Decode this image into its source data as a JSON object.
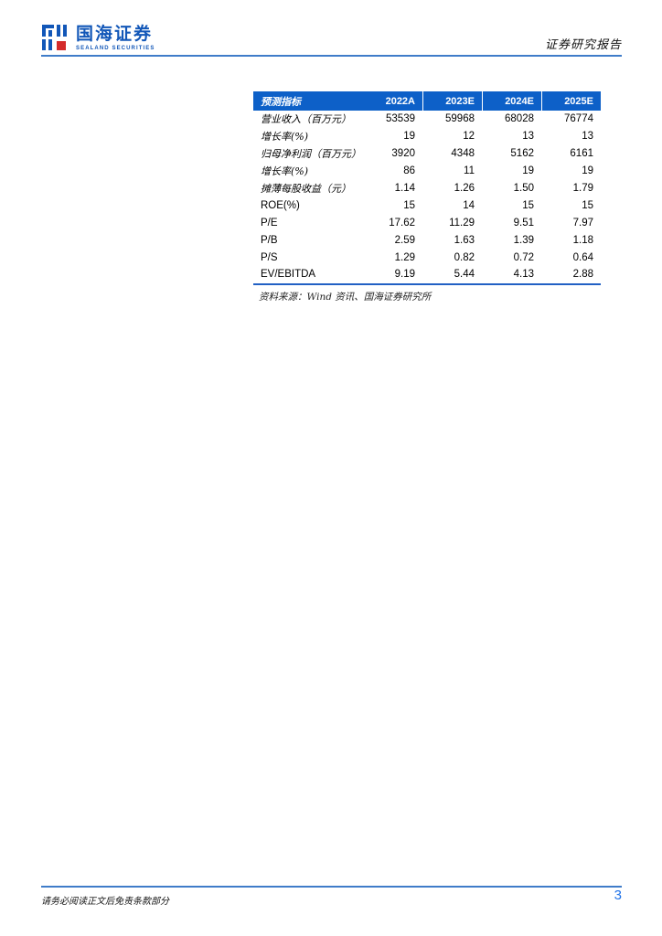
{
  "brand": {
    "logo_text": "国海证券",
    "logo_subtext": "SEALAND SECURITIES",
    "report_type": "证券研究报告"
  },
  "table": {
    "header": [
      "预测指标",
      "2022A",
      "2023E",
      "2024E",
      "2025E"
    ],
    "rows": [
      {
        "label": "营业收入（百万元）",
        "values": [
          "53539",
          "59968",
          "68028",
          "76774"
        ]
      },
      {
        "label": "增长率(%)",
        "values": [
          "19",
          "12",
          "13",
          "13"
        ]
      },
      {
        "label": "归母净利润（百万元）",
        "values": [
          "3920",
          "4348",
          "5162",
          "6161"
        ]
      },
      {
        "label": "增长率(%)",
        "values": [
          "86",
          "11",
          "19",
          "19"
        ]
      },
      {
        "label": "摊薄每股收益（元）",
        "values": [
          "1.14",
          "1.26",
          "1.50",
          "1.79"
        ]
      },
      {
        "label": "ROE(%)",
        "values": [
          "15",
          "14",
          "15",
          "15"
        ]
      },
      {
        "label": "P/E",
        "values": [
          "17.62",
          "11.29",
          "9.51",
          "7.97"
        ]
      },
      {
        "label": "P/B",
        "values": [
          "2.59",
          "1.63",
          "1.39",
          "1.18"
        ]
      },
      {
        "label": "P/S",
        "values": [
          "1.29",
          "0.82",
          "0.72",
          "0.64"
        ]
      },
      {
        "label": "EV/EBITDA",
        "values": [
          "9.19",
          "5.44",
          "4.13",
          "2.88"
        ]
      }
    ],
    "source": "资料来源：Wind 资讯、国海证券研究所"
  },
  "footer": {
    "disclaimer": "请务必阅读正文后免责条款部分",
    "page_number": "3"
  },
  "colors": {
    "brand_blue": "#1257b8",
    "brand_red": "#d42b2b",
    "table_header_bg": "#0d60c8",
    "rule_blue": "#3f7cc9",
    "table_bottom_rule": "#2160c4",
    "page_number_blue": "#1f72e8",
    "text_black": "#1a1a1a"
  }
}
